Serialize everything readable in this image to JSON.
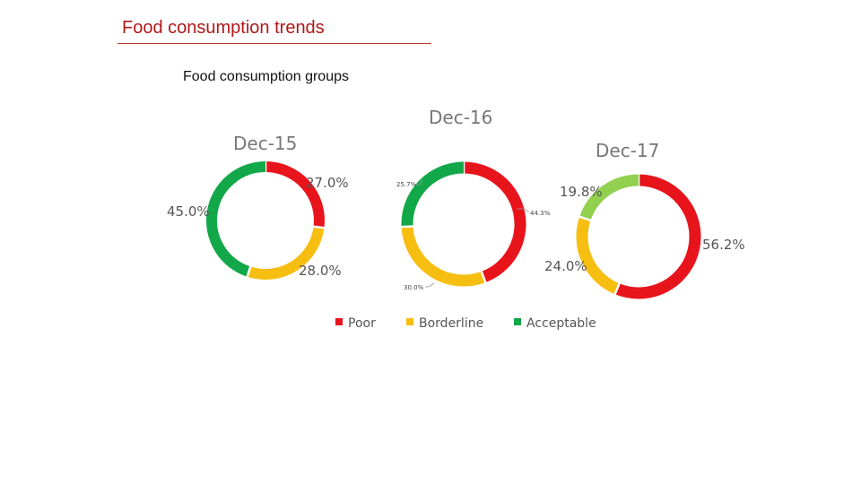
{
  "slide": {
    "title": "Food consumption trends",
    "subtitle": "Food consumption groups"
  },
  "chart_data": [
    {
      "type": "pie",
      "variant": "donut",
      "title": "Dec-15",
      "categories": [
        "Poor",
        "Borderline",
        "Acceptable"
      ],
      "values": [
        27.0,
        28.0,
        45.0
      ],
      "labels": [
        "27.0%",
        "28.0%",
        "45.0%"
      ],
      "colors": [
        "#e8141c",
        "#f7be12",
        "#12a84a"
      ]
    },
    {
      "type": "pie",
      "variant": "donut",
      "title": "Dec-16",
      "categories": [
        "Poor",
        "Borderline",
        "Acceptable"
      ],
      "values": [
        44.3,
        30.0,
        25.7
      ],
      "labels": [
        "44.3%",
        "30.0%",
        "25.7%"
      ],
      "colors": [
        "#e8141c",
        "#f7be12",
        "#12a84a"
      ]
    },
    {
      "type": "pie",
      "variant": "donut",
      "title": "Dec-17",
      "categories": [
        "Poor",
        "Borderline",
        "Acceptable"
      ],
      "values": [
        56.2,
        24.0,
        19.8
      ],
      "labels": [
        "56.2%",
        "24.0%",
        "19.8%"
      ],
      "colors": [
        "#e8141c",
        "#f7be12",
        "#92d050"
      ]
    }
  ],
  "legend": {
    "placement": "bottom",
    "items": [
      {
        "label": "Poor",
        "color": "#e8141c"
      },
      {
        "label": "Borderline",
        "color": "#f7be12"
      },
      {
        "label": "Acceptable",
        "color": "#12a84a"
      }
    ]
  }
}
